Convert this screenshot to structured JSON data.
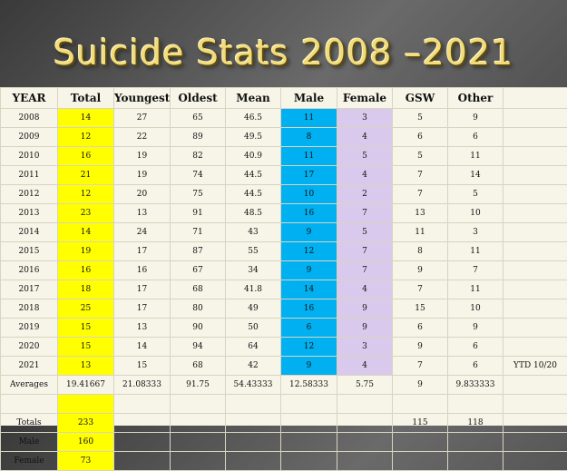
{
  "title": "Suicide Stats 2008 –2021",
  "headers": [
    "YEAR",
    "Total",
    "Youngest",
    "Oldest",
    "Mean",
    "Male",
    "Female",
    "GSW",
    "Other",
    ""
  ],
  "rows": [
    [
      "2008",
      "14",
      "27",
      "65",
      "46.5",
      "11",
      "3",
      "5",
      "9",
      ""
    ],
    [
      "2009",
      "12",
      "22",
      "89",
      "49.5",
      "8",
      "4",
      "6",
      "6",
      ""
    ],
    [
      "2010",
      "16",
      "19",
      "82",
      "40.9",
      "11",
      "5",
      "5",
      "11",
      ""
    ],
    [
      "2011",
      "21",
      "19",
      "74",
      "44.5",
      "17",
      "4",
      "7",
      "14",
      ""
    ],
    [
      "2012",
      "12",
      "20",
      "75",
      "44.5",
      "10",
      "2",
      "7",
      "5",
      ""
    ],
    [
      "2013",
      "23",
      "13",
      "91",
      "48.5",
      "16",
      "7",
      "13",
      "10",
      ""
    ],
    [
      "2014",
      "14",
      "24",
      "71",
      "43",
      "9",
      "5",
      "11",
      "3",
      ""
    ],
    [
      "2015",
      "19",
      "17",
      "87",
      "55",
      "12",
      "7",
      "8",
      "11",
      ""
    ],
    [
      "2016",
      "16",
      "16",
      "67",
      "34",
      "9",
      "7",
      "9",
      "7",
      ""
    ],
    [
      "2017",
      "18",
      "17",
      "68",
      "41.8",
      "14",
      "4",
      "7",
      "11",
      ""
    ],
    [
      "2018",
      "25",
      "17",
      "80",
      "49",
      "16",
      "9",
      "15",
      "10",
      ""
    ],
    [
      "2019",
      "15",
      "13",
      "90",
      "50",
      "6",
      "9",
      "6",
      "9",
      ""
    ],
    [
      "2020",
      "15",
      "14",
      "94",
      "64",
      "12",
      "3",
      "9",
      "6",
      ""
    ],
    [
      "2021",
      "13",
      "15",
      "68",
      "42",
      "9",
      "4",
      "7",
      "6",
      "YTD 10/20"
    ],
    [
      "Averages",
      "19.41667",
      "21.08333",
      "91.75",
      "54.43333",
      "12.58333",
      "5.75",
      "9",
      "9.833333",
      ""
    ],
    [
      "",
      "",
      "",
      "",
      "",
      "",
      "",
      "",
      "",
      ""
    ],
    [
      "Totals",
      "233",
      "",
      "",
      "",
      "",
      "",
      "115",
      "118",
      ""
    ],
    [
      "Male",
      "160",
      "",
      "",
      "",
      "",
      "",
      "",
      "",
      ""
    ],
    [
      "Female",
      "73",
      "",
      "",
      "",
      "",
      "",
      "",
      "",
      ""
    ]
  ],
  "colors": {
    "total": "#ffff00",
    "male": "#00b0f0",
    "female": "#d9c9ec",
    "title": "#f2dc7a"
  }
}
